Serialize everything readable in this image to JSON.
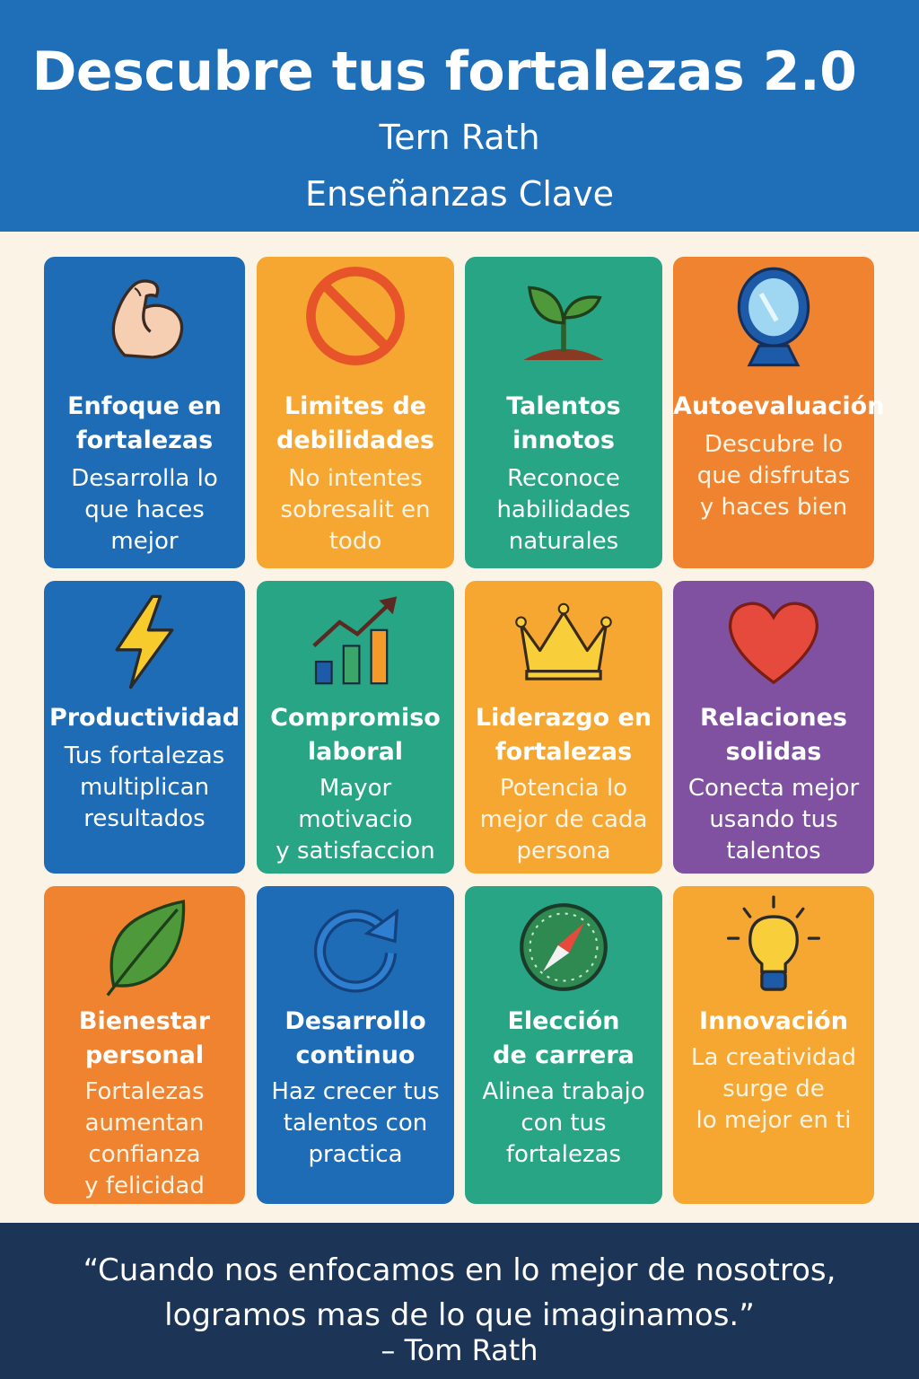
{
  "header": {
    "title": "Descubre tus fortalezas 2.0",
    "author": "Tern Rath",
    "subtitle": "Enseñanzas Clave"
  },
  "cards": [
    {
      "title": "Enfoque en\nfortalezas",
      "text": "Desarrolla lo\nque haces mejor",
      "icon": "flexed-biceps-icon"
    },
    {
      "title": "Limites de\ndebilidades",
      "text": "No intentes\nsobresalit en\ntodo",
      "icon": "prohibited-icon"
    },
    {
      "title": "Talentos\ninnotos",
      "text": "Reconoce\nhabilidades\nnaturales",
      "icon": "sprout-icon"
    },
    {
      "title": "Autoevaluación",
      "text": "Descubre lo\nque disfrutas\ny haces bien",
      "icon": "mirror-icon"
    },
    {
      "title": "Productividad",
      "text": "Tus fortalezas\nmultiplican\nresultados",
      "icon": "lightning-icon"
    },
    {
      "title": "Compromiso\nlaboral",
      "text": "Mayor motivacio\ny satisfaccion",
      "icon": "growth-chart-icon"
    },
    {
      "title": "Liderazgo en\nfortalezas",
      "text": "Potencia lo\nmejor de cada\npersona",
      "icon": "crown-icon"
    },
    {
      "title": "Relaciones\nsolidas",
      "text": "Conecta mejor\nusando tus\ntalentos",
      "icon": "heart-icon"
    },
    {
      "title": "Bienestar\npersonal",
      "text": "Fortalezas\naumentan\nconfianza\ny felicidad",
      "icon": "leaf-icon"
    },
    {
      "title": "Desarrollo\ncontinuo",
      "text": "Haz crecer tus\ntalentos con\npractica",
      "icon": "refresh-arrow-icon"
    },
    {
      "title": "Elección\nde carrera",
      "text": "Alinea trabajo\ncon tus\nfortalezas",
      "icon": "compass-icon"
    },
    {
      "title": "Innovación",
      "text": "La creatividad\nsurge de\nlo mejor en ti",
      "icon": "lightbulb-icon"
    }
  ],
  "footer": {
    "quote": "“Cuando nos enfocamos en lo mejor de nosotros,\nlogramos mas de lo que imaginamos.”",
    "attribution": "– Tom Rath"
  },
  "colors": {
    "header_bg": "#1f6fb8",
    "page_bg": "#fbf3e6",
    "footer_bg": "#1c3557",
    "blue": "#1e6cb6",
    "yellow": "#f5a732",
    "green": "#27a584",
    "orange": "#f08330",
    "purple": "#7f51a0"
  }
}
